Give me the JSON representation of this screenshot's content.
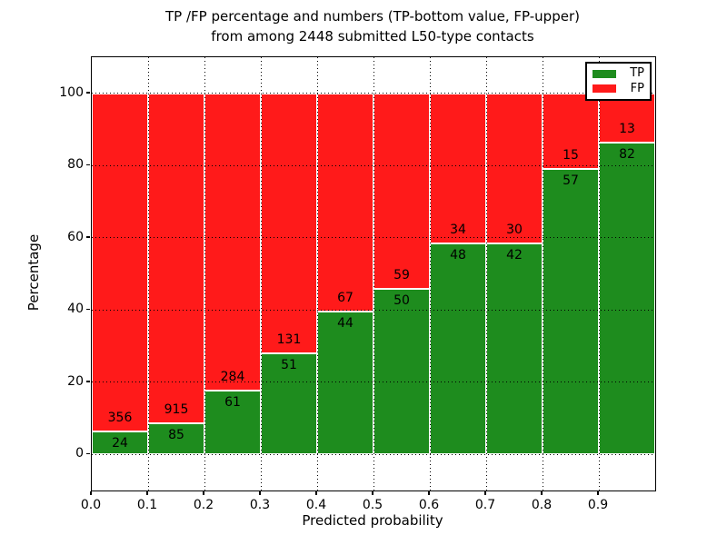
{
  "figure": {
    "title_line1": "TP /FP percentage and numbers (TP-bottom value, FP-upper)",
    "title_line2": "from among 2448 submitted L50-type contacts"
  },
  "chart_data": {
    "type": "bar",
    "stacked": true,
    "normalized": "each bar stacks to 100%",
    "title": "TP /FP percentage and numbers (TP-bottom value, FP-upper) from among 2448 submitted L50-type contacts",
    "xlabel": "Predicted probability",
    "ylabel": "Percentage",
    "total_contacts": 2448,
    "xlim": [
      0.0,
      1.0
    ],
    "ylim": [
      -10,
      110
    ],
    "bin_width": 0.1,
    "grid": "dotted, both axes, drawn over bars",
    "legend_position": "upper right",
    "xtick_labels": [
      "0.0",
      "0.1",
      "0.2",
      "0.3",
      "0.4",
      "0.5",
      "0.6",
      "0.7",
      "0.8",
      "0.9"
    ],
    "ytick_values": [
      0,
      20,
      40,
      60,
      80,
      100
    ],
    "categories": [
      "0.0-0.1",
      "0.1-0.2",
      "0.2-0.3",
      "0.3-0.4",
      "0.4-0.5",
      "0.5-0.6",
      "0.6-0.7",
      "0.7-0.8",
      "0.8-0.9",
      "0.9-1.0"
    ],
    "series": [
      {
        "name": "TP",
        "color": "#1e8c1e",
        "counts": [
          24,
          85,
          61,
          51,
          44,
          50,
          48,
          42,
          57,
          82
        ]
      },
      {
        "name": "FP",
        "color": "#ff1a1a",
        "counts": [
          356,
          915,
          284,
          131,
          67,
          59,
          34,
          30,
          15,
          13
        ]
      }
    ],
    "tp_percent_by_bin": [
      6.3,
      8.5,
      17.7,
      28.0,
      39.6,
      45.9,
      58.5,
      58.3,
      79.2,
      86.3
    ]
  }
}
